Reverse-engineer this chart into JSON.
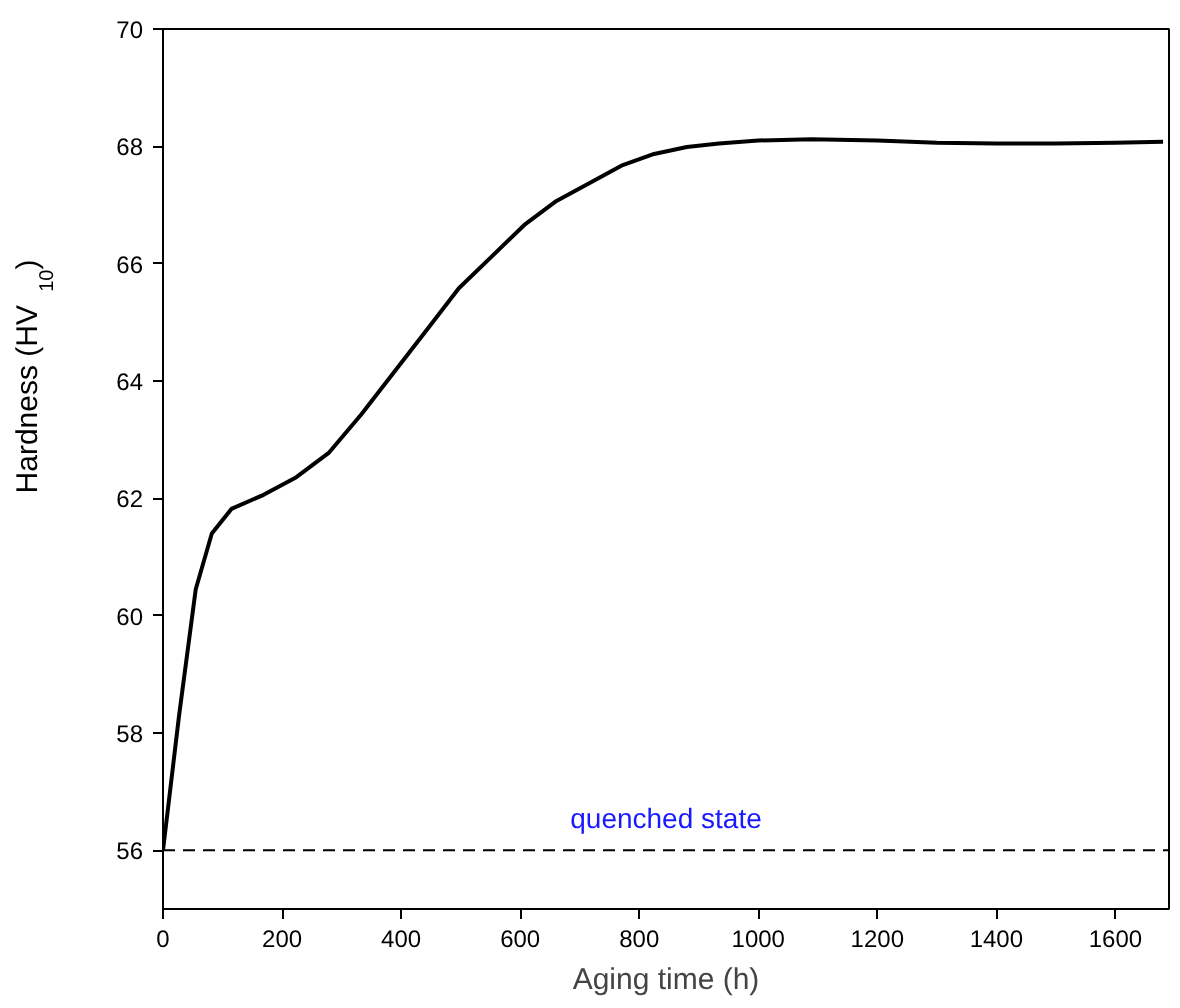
{
  "chart_data": {
    "type": "line",
    "xlabel": "Aging time (h)",
    "ylabel": "Hardness (HV$_{10}$)",
    "xlim": [
      0,
      1690
    ],
    "ylim": [
      55,
      70
    ],
    "xticks": [
      0,
      200,
      400,
      600,
      800,
      1000,
      1200,
      1400,
      1600
    ],
    "yticks": [
      56,
      58,
      60,
      62,
      64,
      66,
      68,
      70
    ],
    "grid": false,
    "marker": "none",
    "line_style": "solid",
    "series": [
      {
        "color": "#000000",
        "x": [
          0,
          27,
          55,
          82,
          115,
          169,
          224,
          279,
          333,
          388,
          443,
          497,
          552,
          607,
          661,
          716,
          770,
          825,
          880,
          934,
          1000,
          1090,
          1200,
          1300,
          1400,
          1500,
          1600,
          1680
        ],
        "values": [
          56,
          58.3,
          60.45,
          61.4,
          61.82,
          62.06,
          62.36,
          62.78,
          63.43,
          64.15,
          64.87,
          65.58,
          66.12,
          66.66,
          67.07,
          67.37,
          67.67,
          67.87,
          67.99,
          68.05,
          68.1,
          68.12,
          68.1,
          68.06,
          68.05,
          68.05,
          68.06,
          68.08
        ]
      }
    ],
    "ref_lines": [
      {
        "axis": "y",
        "value": 56,
        "label": "quenched state",
        "color": "#000000",
        "line_style": "dashed"
      }
    ]
  }
}
